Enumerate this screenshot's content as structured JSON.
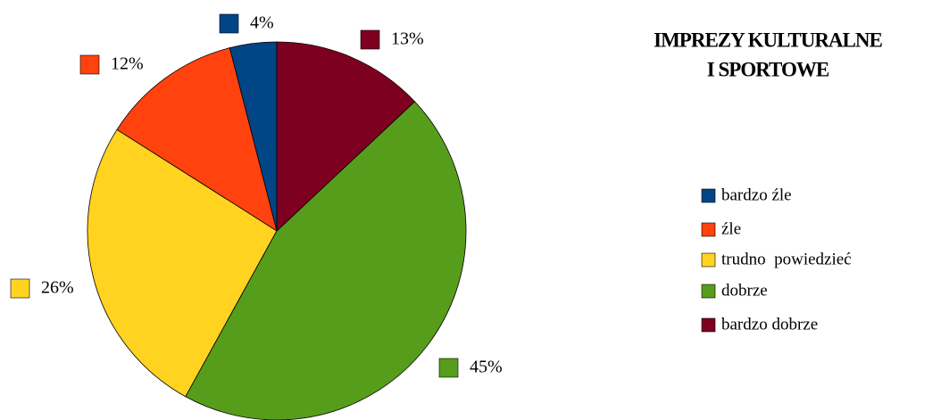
{
  "chart_data": {
    "type": "pie",
    "title": [
      "IMPREZY KULTURALNE",
      "I SPORTOWE"
    ],
    "categories": [
      "bardzo źle",
      "źle",
      "trudno  powiedzieć",
      "dobrze",
      "bardzo dobrze"
    ],
    "values": [
      4,
      12,
      26,
      45,
      13
    ],
    "value_labels": [
      "4%",
      "12%",
      "26%",
      "45%",
      "13%"
    ],
    "colors": [
      "#004586",
      "#ff420e",
      "#ffd320",
      "#579d1c",
      "#7e0021"
    ],
    "legend": "right"
  }
}
